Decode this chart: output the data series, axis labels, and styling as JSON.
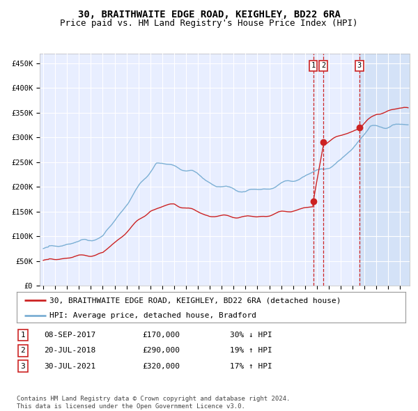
{
  "title": "30, BRAITHWAITE EDGE ROAD, KEIGHLEY, BD22 6RA",
  "subtitle": "Price paid vs. HM Land Registry's House Price Index (HPI)",
  "ylabel_ticks": [
    "£0",
    "£50K",
    "£100K",
    "£150K",
    "£200K",
    "£250K",
    "£300K",
    "£350K",
    "£400K",
    "£450K"
  ],
  "ytick_values": [
    0,
    50000,
    100000,
    150000,
    200000,
    250000,
    300000,
    350000,
    400000,
    450000
  ],
  "ylim": [
    0,
    470000
  ],
  "xlim_start": 1994.7,
  "xlim_end": 2025.8,
  "transactions": [
    {
      "label": "1",
      "date_num": 2017.69,
      "price": 170000,
      "info": "08-SEP-2017",
      "amount": "£170,000",
      "pct": "30% ↓ HPI"
    },
    {
      "label": "2",
      "date_num": 2018.55,
      "price": 290000,
      "info": "20-JUL-2018",
      "amount": "£290,000",
      "pct": "19% ↑ HPI"
    },
    {
      "label": "3",
      "date_num": 2021.58,
      "price": 320000,
      "info": "30-JUL-2021",
      "amount": "£320,000",
      "pct": "17% ↑ HPI"
    }
  ],
  "legend_line1": "30, BRAITHWAITE EDGE ROAD, KEIGHLEY, BD22 6RA (detached house)",
  "legend_line2": "HPI: Average price, detached house, Bradford",
  "footer1": "Contains HM Land Registry data © Crown copyright and database right 2024.",
  "footer2": "This data is licensed under the Open Government Licence v3.0.",
  "hpi_color": "#7bafd4",
  "price_color": "#cc2222",
  "bg_plot": "#e8eeff",
  "grid_color": "#ffffff",
  "box_bg": "#ffffff",
  "title_fontsize": 10,
  "subtitle_fontsize": 9,
  "tick_fontsize": 7.5,
  "legend_fontsize": 8,
  "footer_fontsize": 6.5
}
